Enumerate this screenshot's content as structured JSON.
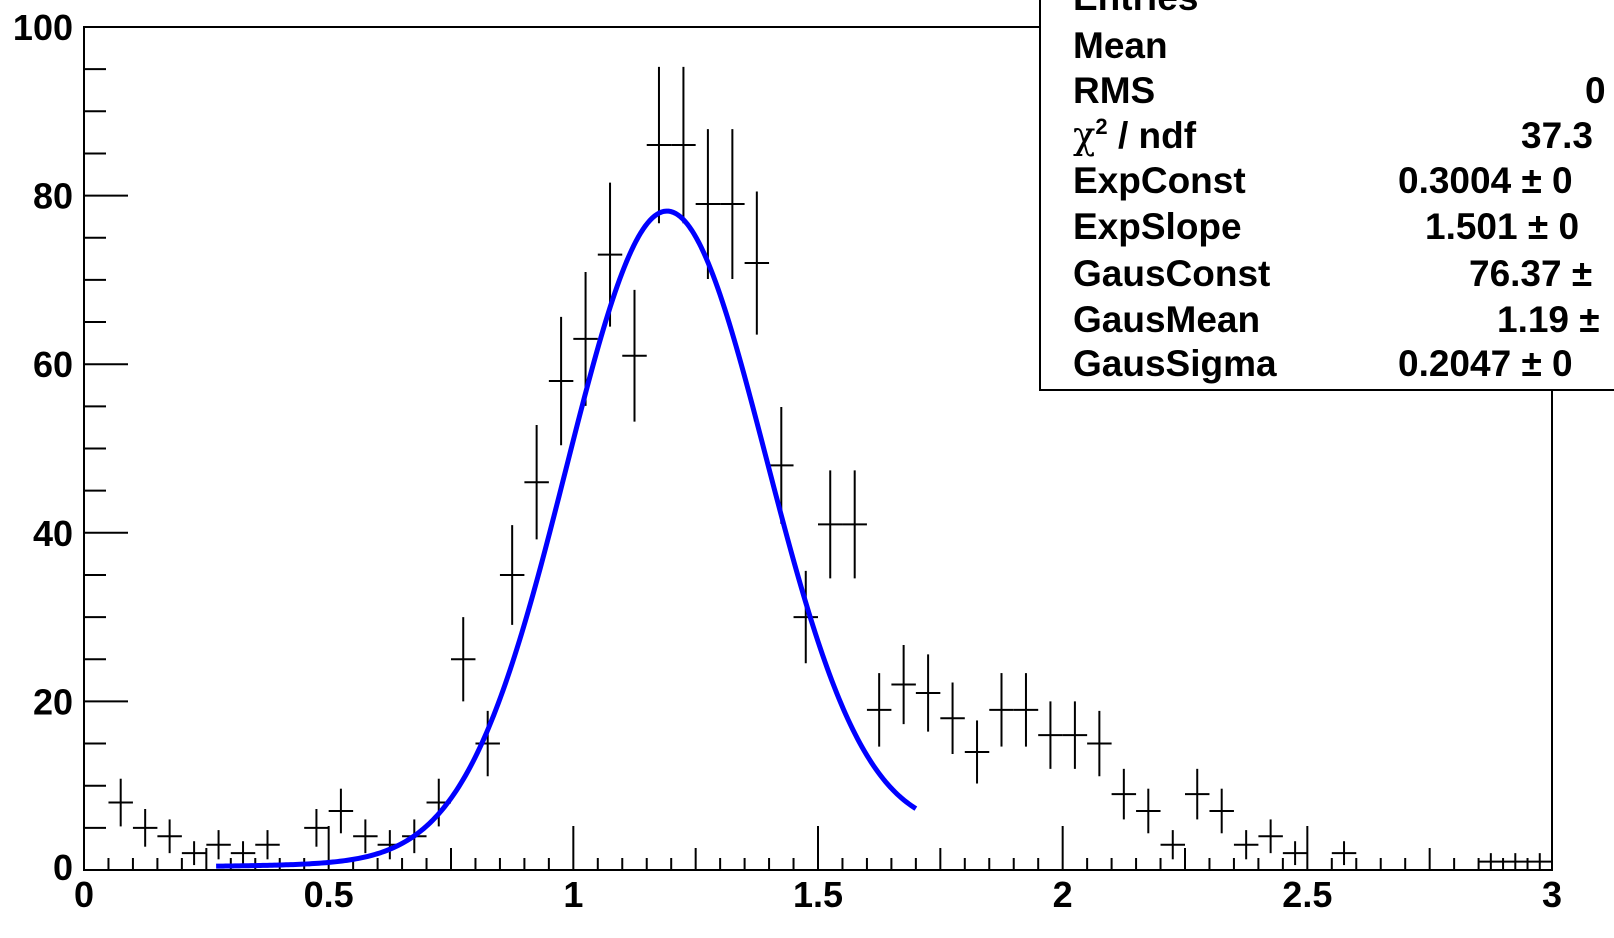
{
  "chart_data": {
    "type": "histogram",
    "title": "",
    "xlabel": "",
    "ylabel": "",
    "xlim": [
      0,
      3
    ],
    "ylim": [
      0,
      100
    ],
    "x_ticks": [
      0,
      0.5,
      1,
      1.5,
      2,
      2.5,
      3
    ],
    "x_tick_labels": [
      "0",
      "0.5",
      "1",
      "1.5",
      "2",
      "2.5",
      "3"
    ],
    "y_ticks": [
      0,
      20,
      40,
      60,
      80,
      100
    ],
    "y_tick_labels": [
      "0",
      "20",
      "40",
      "60",
      "80",
      "100"
    ],
    "bin_width": 0.05,
    "bin_centers": [
      0.075,
      0.125,
      0.175,
      0.225,
      0.275,
      0.325,
      0.375,
      0.475,
      0.525,
      0.575,
      0.625,
      0.675,
      0.725,
      0.775,
      0.825,
      0.875,
      0.925,
      0.975,
      1.025,
      1.075,
      1.125,
      1.175,
      1.225,
      1.275,
      1.325,
      1.375,
      1.425,
      1.475,
      1.525,
      1.575,
      1.625,
      1.675,
      1.725,
      1.775,
      1.825,
      1.875,
      1.925,
      1.975,
      2.025,
      2.075,
      2.125,
      2.175,
      2.225,
      2.275,
      2.325,
      2.375,
      2.425,
      2.475,
      2.575,
      2.875,
      2.925,
      2.975
    ],
    "counts": [
      8,
      5,
      4,
      2,
      3,
      2,
      3,
      5,
      7,
      4,
      3,
      4,
      8,
      25,
      15,
      35,
      46,
      58,
      63,
      73,
      61,
      86,
      86,
      79,
      79,
      72,
      48,
      30,
      41,
      41,
      19,
      22,
      21,
      18,
      14,
      19,
      19,
      16,
      16,
      15,
      9,
      7,
      3,
      9,
      7,
      3,
      4,
      2,
      2,
      1,
      1,
      1
    ],
    "fit": {
      "color": "#0000ff",
      "range": [
        0.27,
        1.7
      ],
      "exp_const": 0.3004,
      "exp_slope": 1.501,
      "gaus_const": 76.37,
      "gaus_mean": 1.19,
      "gaus_sigma": 0.2047
    }
  },
  "stats_box": {
    "rows": [
      {
        "label": "Entries",
        "value": ""
      },
      {
        "label": "Mean",
        "value": ""
      },
      {
        "label": "RMS",
        "value": "0"
      },
      {
        "label_sym": "χ",
        "label_sup": "2",
        "label_rest": " / ndf",
        "value": "37.3"
      },
      {
        "label": "ExpConst",
        "value": "0.3004 ± 0"
      },
      {
        "label": "ExpSlope",
        "value": "1.501 ± 0"
      },
      {
        "label": "GausConst",
        "value": "76.37 ±"
      },
      {
        "label": "GausMean",
        "value": "1.19 ±"
      },
      {
        "label": "GausSigma",
        "value": "0.2047 ± 0"
      }
    ]
  }
}
